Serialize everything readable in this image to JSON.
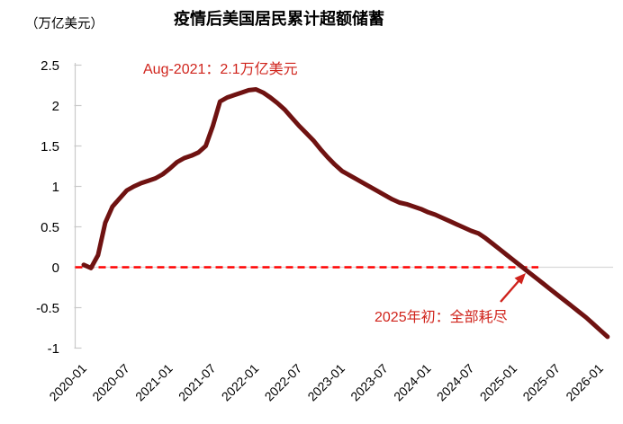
{
  "chart_data": {
    "type": "line",
    "title": "疫情后美国居民累计超额储蓄",
    "ylabel": "（万亿美元）",
    "x_start": "2020-01",
    "x_end": "2026-02",
    "x_frequency": "monthly",
    "x_tick_labels": [
      "2020-01",
      "2020-07",
      "2021-01",
      "2021-07",
      "2022-01",
      "2022-07",
      "2023-01",
      "2023-07",
      "2024-01",
      "2024-07",
      "2025-01",
      "2025-07",
      "2026-01"
    ],
    "y_ticks": [
      "2.5",
      "2",
      "1.5",
      "1",
      "0.5",
      "0",
      "-0.5",
      "-1"
    ],
    "ylim": [
      -1,
      2.5
    ],
    "grid": "zero-line-only",
    "legend": "none",
    "series": [
      {
        "name": "美国居民累计超额储蓄",
        "color": "#6f1211",
        "values": [
          0.03,
          -0.01,
          0.15,
          0.55,
          0.75,
          0.85,
          0.95,
          1.0,
          1.04,
          1.07,
          1.1,
          1.15,
          1.22,
          1.3,
          1.35,
          1.38,
          1.42,
          1.5,
          1.75,
          2.05,
          2.1,
          2.13,
          2.16,
          2.19,
          2.2,
          2.16,
          2.1,
          2.03,
          1.95,
          1.85,
          1.75,
          1.66,
          1.57,
          1.46,
          1.36,
          1.27,
          1.19,
          1.14,
          1.09,
          1.04,
          0.99,
          0.94,
          0.89,
          0.84,
          0.8,
          0.78,
          0.75,
          0.72,
          0.68,
          0.65,
          0.61,
          0.57,
          0.53,
          0.49,
          0.45,
          0.42,
          0.36,
          0.29,
          0.22,
          0.15,
          0.08,
          0.01,
          -0.06,
          -0.13,
          -0.2,
          -0.27,
          -0.34,
          -0.41,
          -0.48,
          -0.55,
          -0.62,
          -0.7,
          -0.78,
          -0.86
        ]
      }
    ],
    "zero_line": {
      "dashed_color": "#ff0000",
      "gridline_color": "#d9d9d9"
    },
    "axis_color": "#c9c9c9",
    "annotations": [
      {
        "id": "peak",
        "text": "Aug-2021：2.1万亿美元",
        "color": "#d0241c"
      },
      {
        "id": "depleted",
        "text": "2025年初：全部耗尽",
        "color": "#d0241c"
      }
    ]
  }
}
